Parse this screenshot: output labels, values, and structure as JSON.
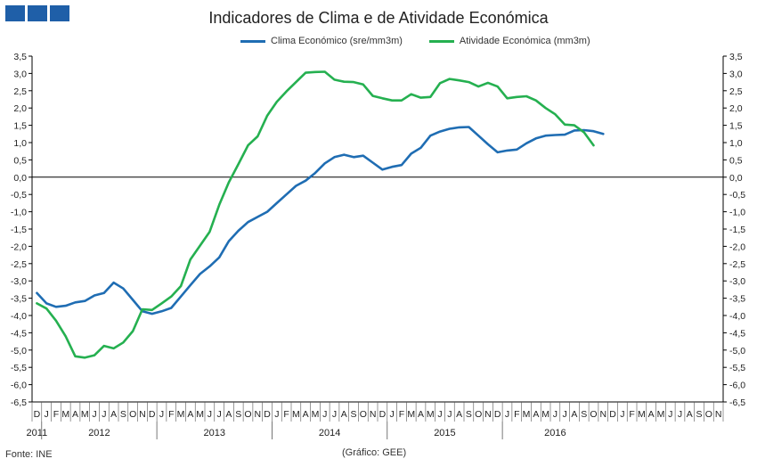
{
  "header": {
    "title": "Indicadores de Clima e de Atividade Económica"
  },
  "footer": {
    "source": "Fonte: INE",
    "credit": "(Gráfico: GEE)"
  },
  "colors": {
    "clima": "#1f6db3",
    "atividade": "#25b050",
    "axis": "#000000",
    "zero": "#000000"
  },
  "chart_data": {
    "type": "line",
    "title": "Indicadores de Clima e de Atividade Económica",
    "xlabel": "",
    "ylabel": "",
    "ylim": [
      -6.5,
      3.5
    ],
    "y_ticks": [
      "3,5",
      "3,0",
      "2,5",
      "2,0",
      "1,5",
      "1,0",
      "0,5",
      "0,0",
      "-0,5",
      "-1,0",
      "-1,5",
      "-2,0",
      "-2,5",
      "-3,0",
      "-3,5",
      "-4,0",
      "-4,5",
      "-5,0",
      "-5,5",
      "-6,0",
      "-6,5"
    ],
    "month_labels": [
      "D",
      "J",
      "F",
      "M",
      "A",
      "M",
      "J",
      "J",
      "A",
      "S",
      "O",
      "N",
      "D",
      "J",
      "F",
      "M",
      "A",
      "M",
      "J",
      "J",
      "A",
      "S",
      "O",
      "N",
      "D",
      "J",
      "F",
      "M",
      "A",
      "M",
      "J",
      "J",
      "A",
      "S",
      "O",
      "N",
      "D",
      "J",
      "F",
      "M",
      "A",
      "M",
      "J",
      "J",
      "A",
      "S",
      "O",
      "N",
      "D",
      "J",
      "F",
      "M",
      "A",
      "M",
      "J",
      "J",
      "A",
      "S",
      "O",
      "N",
      "D",
      "J",
      "F",
      "M",
      "A",
      "M",
      "J",
      "J",
      "A",
      "S",
      "O",
      "N"
    ],
    "year_labels": [
      {
        "label": "2011",
        "start": 0,
        "end": 0
      },
      {
        "label": "2012",
        "start": 1,
        "end": 12
      },
      {
        "label": "2013",
        "start": 13,
        "end": 24
      },
      {
        "label": "2014",
        "start": 25,
        "end": 36
      },
      {
        "label": "2015",
        "start": 37,
        "end": 48
      },
      {
        "label": "2016",
        "start": 49,
        "end": 59
      }
    ],
    "series": [
      {
        "name": "Clima Económico (sre/mm3m)",
        "color": "#1f6db3",
        "values": [
          -3.35,
          -3.65,
          -3.75,
          -3.72,
          -3.62,
          -3.58,
          -3.42,
          -3.35,
          -3.05,
          -3.22,
          -3.55,
          -3.88,
          -3.95,
          -3.88,
          -3.78,
          -3.45,
          -3.12,
          -2.8,
          -2.58,
          -2.32,
          -1.85,
          -1.55,
          -1.3,
          -1.15,
          -1.0,
          -0.75,
          -0.5,
          -0.25,
          -0.1,
          0.12,
          0.4,
          0.58,
          0.65,
          0.58,
          0.62,
          0.42,
          0.22,
          0.3,
          0.35,
          0.68,
          0.85,
          1.2,
          1.32,
          1.4,
          1.44,
          1.45,
          1.2,
          0.95,
          0.72,
          0.77,
          0.8,
          0.98,
          1.12,
          1.2,
          1.22,
          1.23,
          1.35,
          1.36,
          1.33,
          1.25
        ]
      },
      {
        "name": "Atividade Económica (mm3m)",
        "color": "#25b050",
        "values": [
          -3.65,
          -3.8,
          -4.15,
          -4.6,
          -5.18,
          -5.22,
          -5.15,
          -4.88,
          -4.95,
          -4.78,
          -4.45,
          -3.82,
          -3.84,
          -3.65,
          -3.45,
          -3.15,
          -2.38,
          -1.98,
          -1.58,
          -0.8,
          -0.15,
          0.38,
          0.92,
          1.18,
          1.78,
          2.18,
          2.48,
          2.75,
          3.02,
          3.04,
          3.05,
          2.82,
          2.76,
          2.75,
          2.68,
          2.35,
          2.28,
          2.22,
          2.22,
          2.4,
          2.3,
          2.32,
          2.72,
          2.84,
          2.8,
          2.75,
          2.62,
          2.73,
          2.62,
          2.28,
          2.32,
          2.34,
          2.22,
          2.0,
          1.82,
          1.52,
          1.5,
          1.3,
          0.92
        ]
      }
    ]
  }
}
